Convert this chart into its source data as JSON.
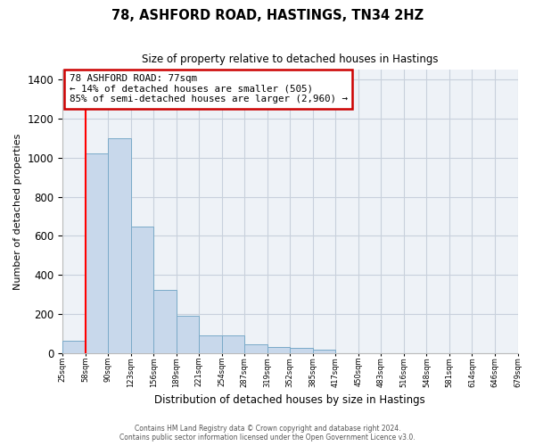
{
  "title": "78, ASHFORD ROAD, HASTINGS, TN34 2HZ",
  "subtitle": "Size of property relative to detached houses in Hastings",
  "xlabel": "Distribution of detached houses by size in Hastings",
  "ylabel": "Number of detached properties",
  "bar_values": [
    62,
    1020,
    1100,
    648,
    323,
    188,
    88,
    88,
    45,
    30,
    25,
    15,
    0,
    0,
    0,
    0,
    0,
    0,
    0,
    0
  ],
  "bin_labels": [
    "25sqm",
    "58sqm",
    "90sqm",
    "123sqm",
    "156sqm",
    "189sqm",
    "221sqm",
    "254sqm",
    "287sqm",
    "319sqm",
    "352sqm",
    "385sqm",
    "417sqm",
    "450sqm",
    "483sqm",
    "516sqm",
    "548sqm",
    "581sqm",
    "614sqm",
    "646sqm",
    "679sqm"
  ],
  "bar_color": "#c8d8eb",
  "bar_edge_color": "#7aaac8",
  "annotation_line1": "78 ASHFORD ROAD: 77sqm",
  "annotation_line2": "← 14% of detached houses are smaller (505)",
  "annotation_line3": "85% of semi-detached houses are larger (2,960) →",
  "vline_x": 1.0,
  "ylim": [
    0,
    1450
  ],
  "yticks": [
    0,
    200,
    400,
    600,
    800,
    1000,
    1200,
    1400
  ],
  "footer_line1": "Contains HM Land Registry data © Crown copyright and database right 2024.",
  "footer_line2": "Contains public sector information licensed under the Open Government Licence v3.0.",
  "bg_color": "#eef2f7",
  "grid_color": "#c8d0dc",
  "annotation_box_color": "#cc0000",
  "n_display_bins": 20
}
